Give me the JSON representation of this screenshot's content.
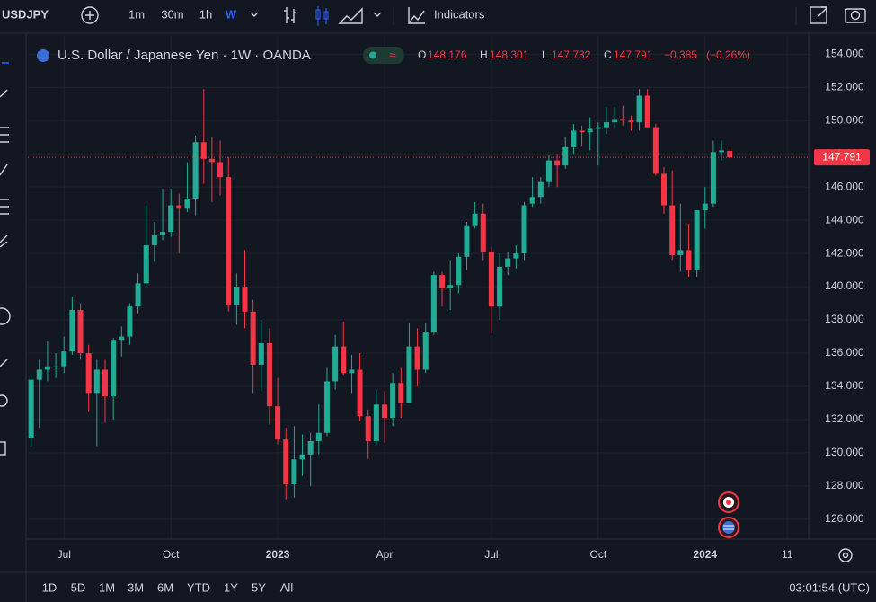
{
  "toolbar": {
    "symbol": "USDJPY",
    "intervals": [
      "1m",
      "30m",
      "1h",
      "W"
    ],
    "indicators": "Indicators"
  },
  "chart_data": {
    "type": "candlestick",
    "title": "U.S. Dollar / Japanese Yen · 1W · OANDA",
    "up_color": "#22ab94",
    "down_color": "#f23645",
    "grid": true,
    "x": [
      0,
      1,
      2,
      3,
      4,
      5,
      6,
      7,
      8,
      9,
      10,
      11,
      12,
      13,
      14,
      15,
      16,
      17,
      18,
      19,
      20,
      21,
      22,
      23,
      24,
      25,
      26,
      27,
      28,
      29,
      30,
      31,
      32,
      33,
      34,
      35,
      36,
      37,
      38,
      39,
      40,
      41,
      42,
      43,
      44,
      45,
      46,
      47,
      48,
      49,
      50,
      51,
      52,
      53,
      54,
      55,
      56,
      57,
      58,
      59,
      60,
      61,
      62,
      63,
      64,
      65,
      66,
      67,
      68,
      69,
      70,
      71,
      72,
      73,
      74,
      75,
      76,
      77,
      78,
      79,
      80,
      81,
      82,
      83,
      84,
      85
    ],
    "open": [
      130.9,
      134.4,
      135.0,
      135.2,
      135.2,
      136.1,
      138.6,
      136.0,
      133.6,
      135.0,
      133.4,
      136.8,
      137.0,
      138.8,
      140.2,
      142.5,
      143.1,
      143.3,
      144.9,
      144.7,
      145.3,
      148.7,
      147.7,
      147.5,
      146.6,
      138.9,
      140.0,
      138.5,
      135.3,
      136.6,
      132.8,
      130.8,
      128.1,
      129.6,
      129.9,
      130.7,
      131.2,
      134.3,
      136.4,
      134.8,
      135.0,
      132.2,
      130.7,
      132.9,
      132.1,
      134.2,
      133.0,
      136.4,
      135.0,
      137.3,
      140.7,
      139.9,
      140.1,
      141.8,
      143.7,
      144.4,
      142.1,
      138.8,
      141.2,
      141.7,
      142.0,
      145.0,
      145.4,
      146.3,
      147.6,
      147.3,
      148.4,
      149.4,
      149.3,
      149.5,
      149.6,
      149.9,
      150.1,
      150.0,
      149.9,
      151.5,
      149.6,
      146.8,
      144.9,
      141.9,
      142.2,
      141.0,
      144.6,
      145.0,
      148.1,
      148.176
    ],
    "high": [
      134.6,
      135.6,
      136.7,
      136.0,
      137.0,
      139.4,
      139.0,
      136.5,
      135.6,
      135.6,
      136.9,
      137.6,
      139.0,
      140.8,
      144.9,
      143.9,
      145.9,
      145.9,
      145.6,
      147.5,
      149.1,
      151.9,
      149.0,
      148.8,
      147.8,
      140.8,
      142.2,
      139.2,
      138.0,
      137.5,
      134.5,
      131.5,
      131.6,
      131.1,
      131.2,
      132.9,
      135.1,
      137.1,
      137.9,
      135.9,
      136.0,
      132.6,
      133.8,
      133.7,
      134.8,
      135.1,
      137.8,
      137.5,
      137.8,
      140.9,
      140.9,
      141.6,
      142.0,
      143.9,
      145.1,
      145.0,
      142.4,
      142.0,
      142.1,
      142.5,
      145.1,
      146.6,
      146.6,
      147.9,
      148.0,
      149.0,
      149.8,
      149.7,
      150.2,
      149.9,
      150.8,
      150.8,
      150.9,
      150.3,
      151.9,
      151.9,
      149.8,
      147.2,
      147.0,
      145.0,
      143.8,
      144.6,
      146.0,
      148.8,
      148.8,
      148.301
    ],
    "low": [
      130.4,
      131.5,
      134.3,
      134.5,
      134.8,
      135.9,
      135.6,
      132.5,
      130.4,
      131.8,
      132.0,
      135.8,
      136.5,
      138.4,
      140.0,
      141.5,
      142.8,
      143.0,
      142.0,
      144.5,
      144.3,
      146.2,
      145.1,
      145.5,
      138.5,
      137.7,
      137.5,
      133.6,
      133.7,
      131.7,
      130.5,
      127.2,
      127.3,
      128.6,
      128.0,
      129.9,
      131.0,
      133.8,
      134.7,
      133.6,
      131.9,
      129.6,
      130.5,
      130.6,
      131.6,
      132.1,
      133.0,
      134.0,
      134.8,
      137.1,
      138.8,
      138.6,
      139.6,
      141.0,
      143.5,
      141.6,
      137.2,
      138.0,
      140.7,
      141.1,
      141.6,
      144.8,
      145.0,
      146.0,
      146.0,
      147.1,
      148.0,
      148.5,
      148.2,
      147.3,
      149.2,
      149.6,
      149.7,
      149.4,
      149.4,
      149.6,
      146.7,
      144.4,
      141.6,
      140.9,
      140.6,
      140.6,
      143.5,
      144.8,
      147.6,
      147.732
    ],
    "close": [
      134.4,
      135.0,
      135.2,
      135.2,
      136.1,
      138.6,
      136.0,
      133.6,
      135.0,
      133.4,
      136.8,
      137.0,
      138.8,
      140.2,
      142.5,
      143.1,
      143.3,
      144.9,
      144.7,
      145.3,
      148.7,
      147.7,
      147.5,
      146.6,
      138.9,
      140.0,
      138.5,
      135.3,
      136.6,
      132.8,
      130.8,
      128.1,
      129.6,
      129.9,
      130.7,
      131.2,
      134.3,
      136.4,
      134.8,
      135.0,
      132.2,
      130.7,
      132.9,
      132.1,
      134.2,
      133.0,
      136.4,
      135.0,
      137.3,
      140.7,
      139.9,
      140.1,
      141.8,
      143.7,
      144.4,
      142.1,
      138.8,
      141.2,
      141.7,
      142.0,
      144.9,
      145.4,
      146.3,
      147.6,
      147.3,
      148.4,
      149.4,
      149.3,
      149.5,
      149.6,
      149.9,
      150.1,
      150.0,
      149.9,
      151.5,
      149.6,
      146.8,
      144.9,
      141.9,
      142.2,
      141.0,
      144.6,
      145.0,
      148.1,
      148.2,
      147.791
    ],
    "last_price": 147.791,
    "legend": {
      "ohlc_labels": [
        "O",
        "H",
        "L",
        "C"
      ],
      "change": {
        "value": -0.385,
        "label": "−0.385"
      },
      "change_pct": {
        "value": -0.26,
        "label": "(−0.26%)"
      }
    },
    "xlim": [
      -0.4,
      94.6
    ],
    "xticks": [
      {
        "value": 4,
        "label": "Jul"
      },
      {
        "value": 17,
        "label": "Oct"
      },
      {
        "value": 30,
        "label": "2023"
      },
      {
        "value": 43,
        "label": "Apr"
      },
      {
        "value": 56,
        "label": "Jul"
      },
      {
        "value": 69,
        "label": "Oct"
      },
      {
        "value": 82,
        "label": "2024"
      },
      {
        "value": 92,
        "label": "11"
      }
    ],
    "ylim": [
      124.8,
      155.1
    ],
    "yticks": [
      {
        "value": 126,
        "label": "126.000"
      },
      {
        "value": 128,
        "label": "128.000"
      },
      {
        "value": 130,
        "label": "130.000"
      },
      {
        "value": 132,
        "label": "132.000"
      },
      {
        "value": 134,
        "label": "134.000"
      },
      {
        "value": 136,
        "label": "136.000"
      },
      {
        "value": 138,
        "label": "138.000"
      },
      {
        "value": 140,
        "label": "140.000"
      },
      {
        "value": 142,
        "label": "142.000"
      },
      {
        "value": 144,
        "label": "144.000"
      },
      {
        "value": 146,
        "label": "146.000"
      },
      {
        "value": 148,
        "label": "148.000"
      },
      {
        "value": 150,
        "label": "150.000"
      },
      {
        "value": 152,
        "label": "152.000"
      },
      {
        "value": 154,
        "label": "154.000"
      }
    ]
  },
  "range_bar": {
    "ranges": [
      "1D",
      "5D",
      "1M",
      "3M",
      "6M",
      "YTD",
      "1Y",
      "5Y",
      "All"
    ],
    "clock": "03:01:54 (UTC)"
  }
}
